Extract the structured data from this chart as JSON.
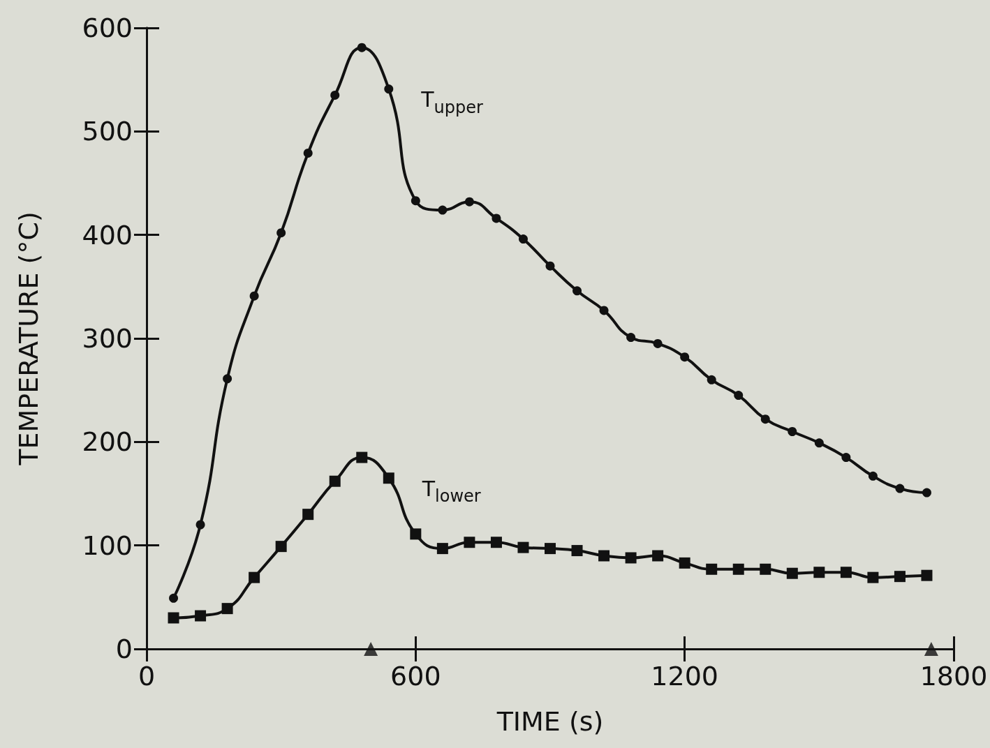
{
  "chart_data": {
    "type": "line",
    "xlabel": "TIME (s)",
    "ylabel": "TEMPERATURE (°C)",
    "x": [
      60,
      120,
      180,
      240,
      300,
      360,
      420,
      480,
      540,
      600,
      660,
      720,
      780,
      840,
      900,
      960,
      1020,
      1080,
      1140,
      1200,
      1260,
      1320,
      1380,
      1440,
      1500,
      1560,
      1620,
      1680,
      1740
    ],
    "series": [
      {
        "name": "T$_{upper}$",
        "color": "#111111",
        "marker": "circle",
        "values": [
          49,
          120,
          261,
          341,
          402,
          479,
          535,
          581,
          541,
          433,
          424,
          432,
          416,
          396,
          370,
          346,
          327,
          301,
          295,
          282,
          260,
          245,
          222,
          210,
          199,
          185,
          167,
          155,
          151
        ]
      },
      {
        "name": "T$_{lower}$",
        "color": "#111111",
        "marker": "square",
        "values": [
          30,
          32,
          39,
          69,
          99,
          130,
          162,
          185,
          165,
          111,
          97,
          103,
          103,
          98,
          97,
          95,
          90,
          88,
          90,
          83,
          77,
          77,
          77,
          73,
          74,
          74,
          69,
          70,
          71
        ]
      },
      {
        "type": "scatter",
        "color": "#111111",
        "marker": "triangle",
        "x": [
          500,
          1750
        ],
        "values": [
          0,
          0
        ]
      }
    ],
    "line_style": "solid",
    "grid": false,
    "legend": false,
    "xlim": [
      0,
      1800
    ],
    "xticks": [
      0,
      600,
      1200,
      1800
    ],
    "ylim": [
      0,
      600
    ],
    "yticks": [
      0,
      100,
      200,
      300,
      400,
      500,
      600
    ]
  }
}
